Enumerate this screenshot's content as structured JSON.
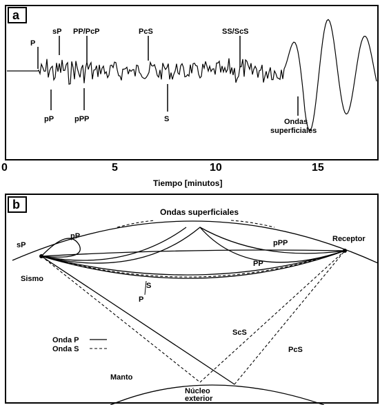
{
  "panel_a": {
    "label": "a",
    "phases_top": [
      "P",
      "sP",
      "PP/PcP",
      "PcS",
      "SS/ScS"
    ],
    "phases_bottom": [
      "pP",
      "pPP",
      "S"
    ],
    "surface_label": [
      "Ondas",
      "superficiales"
    ],
    "x_axis": {
      "ticks": [
        0,
        5,
        10,
        15
      ],
      "title": "Tiempo [minutos]"
    }
  },
  "panel_b": {
    "label": "b",
    "surface_title": "Ondas superficiales",
    "labels": {
      "sP": "sP",
      "pP": "pP",
      "pPP": "pPP",
      "receptor": "Receptor",
      "PP": "PP",
      "S": "S",
      "P": "P",
      "sismo": "Sismo",
      "ScS": "ScS",
      "PcS": "PcS",
      "manto": "Manto",
      "core": [
        "Núcleo",
        "exterior"
      ]
    },
    "legend": [
      "Onda P",
      "Onda S"
    ]
  }
}
